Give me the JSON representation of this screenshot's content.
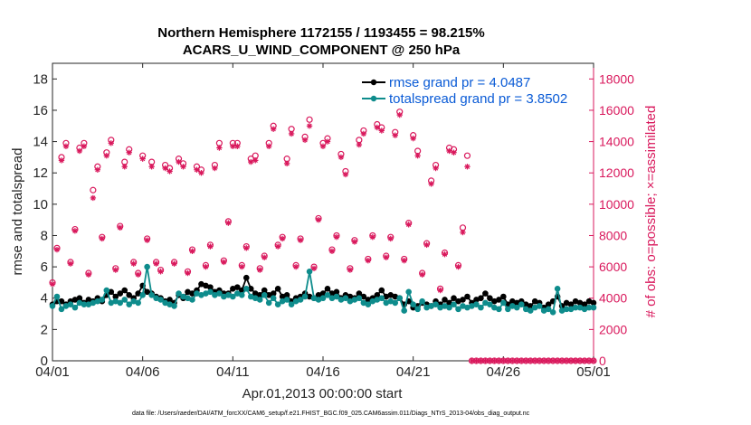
{
  "chart_data": {
    "type": "line",
    "title_line1": "Northern Hemisphere 1172155 / 1193455 = 98.215%",
    "title_line2": "ACARS_U_WIND_COMPONENT @ 250 hPa",
    "xlabel": "Apr.01,2013 00:00:00 start",
    "ylabel_left": "rmse and totalspread",
    "ylabel_right": "# of obs: o=possible; ×=assimilated",
    "x_ticks": [
      "04/01",
      "04/06",
      "04/11",
      "04/16",
      "04/21",
      "04/26",
      "05/01"
    ],
    "x_tick_days": [
      0,
      5,
      10,
      15,
      20,
      25,
      30
    ],
    "ylim_left": [
      0,
      19
    ],
    "y_ticks_left": [
      "0",
      "2",
      "4",
      "6",
      "8",
      "10",
      "12",
      "14",
      "16",
      "18"
    ],
    "ylim_right": [
      0,
      19000
    ],
    "y_ticks_right": [
      "0",
      "2000",
      "4000",
      "6000",
      "8000",
      "10000",
      "12000",
      "14000",
      "16000",
      "18000"
    ],
    "legend": {
      "rmse_label": "rmse grand pr = 4.0487",
      "spread_label": "totalspread grand pr = 3.8502",
      "placement": "top-right"
    },
    "colors": {
      "rmse": "#000000",
      "spread": "#0e8c8c",
      "obs": "#d9185c"
    },
    "series": [
      {
        "name": "rmse",
        "x_days": [
          0.0,
          0.25,
          0.5,
          0.75,
          1.0,
          1.25,
          1.5,
          1.75,
          2.0,
          2.25,
          2.5,
          2.75,
          3.0,
          3.25,
          3.5,
          3.75,
          4.0,
          4.25,
          4.5,
          4.75,
          5.0,
          5.25,
          5.5,
          5.75,
          6.0,
          6.25,
          6.5,
          6.75,
          7.0,
          7.25,
          7.5,
          7.75,
          8.0,
          8.25,
          8.5,
          8.75,
          9.0,
          9.25,
          9.5,
          9.75,
          10.0,
          10.25,
          10.5,
          10.75,
          11.0,
          11.25,
          11.5,
          11.75,
          12.0,
          12.25,
          12.5,
          12.75,
          13.0,
          13.25,
          13.5,
          13.75,
          14.0,
          14.25,
          14.5,
          14.75,
          15.0,
          15.25,
          15.5,
          15.75,
          16.0,
          16.25,
          16.5,
          16.75,
          17.0,
          17.25,
          17.5,
          17.75,
          18.0,
          18.25,
          18.5,
          18.75,
          19.0,
          19.25,
          19.5,
          19.75,
          20.0,
          20.25,
          20.5,
          20.75,
          21.0,
          21.25,
          21.5,
          21.75,
          22.0,
          22.25,
          22.5,
          22.75,
          23.0,
          23.25,
          23.5,
          23.75,
          24.0,
          24.25,
          24.5,
          24.75,
          25.0,
          25.25,
          25.5,
          25.75,
          26.0,
          26.25,
          26.5,
          26.75,
          27.0,
          27.25,
          27.5,
          27.75,
          28.0,
          28.25,
          28.5,
          28.75,
          29.0,
          29.25,
          29.5,
          29.75,
          30.0
        ],
        "values": [
          3.6,
          3.8,
          3.8,
          3.6,
          3.8,
          3.9,
          4.0,
          3.7,
          3.9,
          3.8,
          4.0,
          3.8,
          4.2,
          4.4,
          4.1,
          4.3,
          4.5,
          4.2,
          4.0,
          4.3,
          4.8,
          4.4,
          4.3,
          4.1,
          4.0,
          3.8,
          3.9,
          3.7,
          4.2,
          4.0,
          4.4,
          4.3,
          4.5,
          4.9,
          4.8,
          4.7,
          4.4,
          4.5,
          4.3,
          4.3,
          4.6,
          4.7,
          4.5,
          5.3,
          4.6,
          4.3,
          4.2,
          4.5,
          4.2,
          4.3,
          4.6,
          4.1,
          4.2,
          3.8,
          4.0,
          4.1,
          4.3,
          4.1,
          4.0,
          4.2,
          4.3,
          4.6,
          4.3,
          4.4,
          4.0,
          4.2,
          4.1,
          4.0,
          4.3,
          4.1,
          3.9,
          4.0,
          4.2,
          4.5,
          4.1,
          4.2,
          4.1,
          4.0,
          3.6,
          3.8,
          3.4,
          3.5,
          3.7,
          3.6,
          3.5,
          3.8,
          3.6,
          3.9,
          3.7,
          4.0,
          3.8,
          3.9,
          4.1,
          3.7,
          3.9,
          4.0,
          4.3,
          4.0,
          3.8,
          3.9,
          4.1,
          3.6,
          3.8,
          3.7,
          3.8,
          3.6,
          3.5,
          3.8,
          3.7,
          3.4,
          3.6,
          3.8,
          4.1,
          3.5,
          3.7,
          3.6,
          3.8,
          3.7,
          3.6,
          3.8,
          3.7
        ]
      },
      {
        "name": "totalspread",
        "x_days": [
          0.0,
          0.25,
          0.5,
          0.75,
          1.0,
          1.25,
          1.5,
          1.75,
          2.0,
          2.25,
          2.5,
          2.75,
          3.0,
          3.25,
          3.5,
          3.75,
          4.0,
          4.25,
          4.5,
          4.75,
          5.0,
          5.25,
          5.5,
          5.75,
          6.0,
          6.25,
          6.5,
          6.75,
          7.0,
          7.25,
          7.5,
          7.75,
          8.0,
          8.25,
          8.5,
          8.75,
          9.0,
          9.25,
          9.5,
          9.75,
          10.0,
          10.25,
          10.5,
          10.75,
          11.0,
          11.25,
          11.5,
          11.75,
          12.0,
          12.25,
          12.5,
          12.75,
          13.0,
          13.25,
          13.5,
          13.75,
          14.0,
          14.25,
          14.5,
          14.75,
          15.0,
          15.25,
          15.5,
          15.75,
          16.0,
          16.25,
          16.5,
          16.75,
          17.0,
          17.25,
          17.5,
          17.75,
          18.0,
          18.25,
          18.5,
          18.75,
          19.0,
          19.25,
          19.5,
          19.75,
          20.0,
          20.25,
          20.5,
          20.75,
          21.0,
          21.25,
          21.5,
          21.75,
          22.0,
          22.25,
          22.5,
          22.75,
          23.0,
          23.25,
          23.5,
          23.75,
          24.0,
          24.25,
          24.5,
          24.75,
          25.0,
          25.25,
          25.5,
          25.75,
          26.0,
          26.25,
          26.5,
          26.75,
          27.0,
          27.25,
          27.5,
          27.75,
          28.0,
          28.25,
          28.5,
          28.75,
          29.0,
          29.25,
          29.5,
          29.75,
          30.0
        ],
        "values": [
          3.5,
          4.1,
          3.3,
          3.5,
          3.6,
          3.4,
          3.7,
          3.6,
          3.6,
          3.7,
          3.8,
          3.9,
          4.5,
          3.7,
          3.8,
          3.7,
          3.9,
          3.6,
          3.8,
          3.7,
          4.2,
          6.0,
          4.2,
          4.0,
          3.9,
          3.7,
          3.6,
          3.5,
          4.3,
          4.1,
          4.0,
          3.9,
          4.3,
          4.2,
          4.3,
          4.4,
          4.2,
          4.3,
          4.1,
          4.2,
          4.1,
          4.3,
          4.2,
          4.6,
          4.1,
          4.0,
          3.9,
          4.2,
          3.7,
          4.0,
          3.6,
          3.8,
          3.9,
          3.6,
          3.8,
          3.9,
          4.1,
          5.7,
          4.0,
          3.9,
          4.0,
          4.2,
          4.0,
          4.1,
          3.9,
          4.0,
          3.8,
          3.9,
          4.0,
          3.7,
          3.6,
          3.8,
          3.9,
          4.0,
          3.7,
          3.8,
          3.7,
          4.0,
          3.2,
          4.4,
          3.6,
          3.3,
          3.8,
          3.4,
          3.5,
          3.6,
          3.4,
          3.5,
          3.4,
          3.6,
          3.3,
          3.5,
          3.4,
          3.5,
          3.6,
          3.4,
          3.7,
          3.6,
          3.4,
          3.3,
          3.7,
          3.3,
          3.5,
          3.4,
          3.6,
          3.3,
          3.2,
          3.4,
          3.5,
          3.2,
          3.3,
          3.1,
          4.6,
          3.2,
          3.3,
          3.3,
          3.4,
          3.4,
          3.3,
          3.4,
          3.4
        ]
      },
      {
        "name": "obs_possible",
        "x_days": [
          0.0,
          0.25,
          0.5,
          0.75,
          1.0,
          1.25,
          1.5,
          1.75,
          2.0,
          2.25,
          2.5,
          2.75,
          3.0,
          3.25,
          3.5,
          3.75,
          4.0,
          4.25,
          4.5,
          4.75,
          5.0,
          5.25,
          5.5,
          5.75,
          6.0,
          6.25,
          6.5,
          6.75,
          7.0,
          7.25,
          7.5,
          7.75,
          8.0,
          8.25,
          8.5,
          8.75,
          9.0,
          9.25,
          9.5,
          9.75,
          10.0,
          10.25,
          10.5,
          10.75,
          11.0,
          11.25,
          11.5,
          11.75,
          12.0,
          12.25,
          12.5,
          12.75,
          13.0,
          13.25,
          13.5,
          13.75,
          14.0,
          14.25,
          14.5,
          14.75,
          15.0,
          15.25,
          15.5,
          15.75,
          16.0,
          16.25,
          16.5,
          16.75,
          17.0,
          17.25,
          17.5,
          17.75,
          18.0,
          18.25,
          18.5,
          18.75,
          19.0,
          19.25,
          19.5,
          19.75,
          20.0,
          20.25,
          20.5,
          20.75,
          21.0,
          21.25,
          21.5,
          21.75,
          22.0,
          22.25,
          22.5,
          22.75,
          23.0,
          23.25,
          23.5,
          23.75,
          24.0,
          24.25,
          24.5,
          24.75,
          25.0,
          25.25,
          25.5,
          25.75,
          26.0,
          26.25,
          26.5,
          26.75,
          27.0,
          27.25,
          27.5,
          27.75,
          28.0,
          28.25,
          28.5,
          28.75,
          29.0,
          29.25,
          29.5,
          29.75,
          30.0
        ],
        "values": [
          5000,
          7200,
          13000,
          13900,
          6300,
          8400,
          13600,
          13900,
          5600,
          10900,
          12400,
          7900,
          13300,
          14100,
          5900,
          8600,
          12700,
          13500,
          6300,
          5600,
          13100,
          7800,
          12700,
          6300,
          5800,
          12500,
          12300,
          6300,
          12900,
          12600,
          5700,
          7100,
          12400,
          12200,
          6100,
          7400,
          12500,
          13900,
          6400,
          8900,
          13900,
          13900,
          6100,
          7300,
          12900,
          13100,
          5900,
          6700,
          13900,
          15000,
          7400,
          7900,
          12900,
          14800,
          6100,
          7800,
          14300,
          15400,
          6000,
          9100,
          13900,
          14200,
          7100,
          8000,
          13200,
          12100,
          5900,
          7700,
          14100,
          14700,
          6500,
          8000,
          15100,
          14900,
          6700,
          7900,
          14600,
          15900,
          6500,
          8800,
          14400,
          13400,
          5600,
          7500,
          11500,
          12500,
          4600,
          6900,
          13600,
          13500,
          6100,
          8500,
          13100,
          0,
          0,
          0,
          0,
          0,
          0,
          0,
          0,
          0,
          0,
          0,
          0,
          0,
          0,
          0,
          0,
          0,
          0,
          0,
          0,
          0,
          0,
          0,
          0,
          0,
          0,
          0,
          0
        ]
      },
      {
        "name": "obs_assimilated",
        "x_days": [
          0.0,
          0.25,
          0.5,
          0.75,
          1.0,
          1.25,
          1.5,
          1.75,
          2.0,
          2.25,
          2.5,
          2.75,
          3.0,
          3.25,
          3.5,
          3.75,
          4.0,
          4.25,
          4.5,
          4.75,
          5.0,
          5.25,
          5.5,
          5.75,
          6.0,
          6.25,
          6.5,
          6.75,
          7.0,
          7.25,
          7.5,
          7.75,
          8.0,
          8.25,
          8.5,
          8.75,
          9.0,
          9.25,
          9.5,
          9.75,
          10.0,
          10.25,
          10.5,
          10.75,
          11.0,
          11.25,
          11.5,
          11.75,
          12.0,
          12.25,
          12.5,
          12.75,
          13.0,
          13.25,
          13.5,
          13.75,
          14.0,
          14.25,
          14.5,
          14.75,
          15.0,
          15.25,
          15.5,
          15.75,
          16.0,
          16.25,
          16.5,
          16.75,
          17.0,
          17.25,
          17.5,
          17.75,
          18.0,
          18.25,
          18.5,
          18.75,
          19.0,
          19.25,
          19.5,
          19.75,
          20.0,
          20.25,
          20.5,
          20.75,
          21.0,
          21.25,
          21.5,
          21.75,
          22.0,
          22.25,
          22.5,
          22.75,
          23.0,
          23.25,
          23.5,
          23.75,
          24.0,
          24.25,
          24.5,
          24.75,
          25.0,
          25.25,
          25.5,
          25.75,
          26.0,
          26.25,
          26.5,
          26.75,
          27.0,
          27.25,
          27.5,
          27.75,
          28.0,
          28.25,
          28.5,
          28.75,
          29.0,
          29.25,
          29.5,
          29.75,
          30.0
        ],
        "values": [
          4900,
          7100,
          12800,
          13700,
          6200,
          8300,
          13400,
          13700,
          5500,
          10400,
          12200,
          7800,
          13100,
          13900,
          5800,
          8500,
          12400,
          13300,
          6200,
          5500,
          12900,
          7700,
          12400,
          6200,
          5700,
          12300,
          12100,
          6200,
          12700,
          12400,
          5600,
          7000,
          12200,
          12000,
          6000,
          7300,
          12300,
          13600,
          6300,
          8800,
          13700,
          13700,
          6000,
          7200,
          12700,
          12800,
          5800,
          6600,
          13700,
          14800,
          7300,
          7800,
          12600,
          14500,
          6000,
          7700,
          14100,
          15000,
          5900,
          9000,
          13700,
          14000,
          7000,
          7900,
          13000,
          11900,
          5800,
          7600,
          13800,
          14500,
          6400,
          7900,
          14900,
          14700,
          6600,
          7800,
          14400,
          15700,
          6400,
          8700,
          14200,
          13100,
          5500,
          7400,
          11300,
          12300,
          4500,
          6800,
          13400,
          13300,
          6000,
          8200,
          12400,
          0,
          0,
          0,
          0,
          0,
          0,
          0,
          0,
          0,
          0,
          0,
          0,
          0,
          0,
          0,
          0,
          0,
          0,
          0,
          0,
          0,
          0,
          0,
          0,
          0,
          0,
          0,
          0
        ]
      }
    ],
    "footnote": "data file: /Users/raeder/DAI/ATM_forcXX/CAM6_setup/f.e21.FHIST_BGC.f09_025.CAM6assim.011/Diags_NTrS_2013-04/obs_diag_output.nc"
  }
}
